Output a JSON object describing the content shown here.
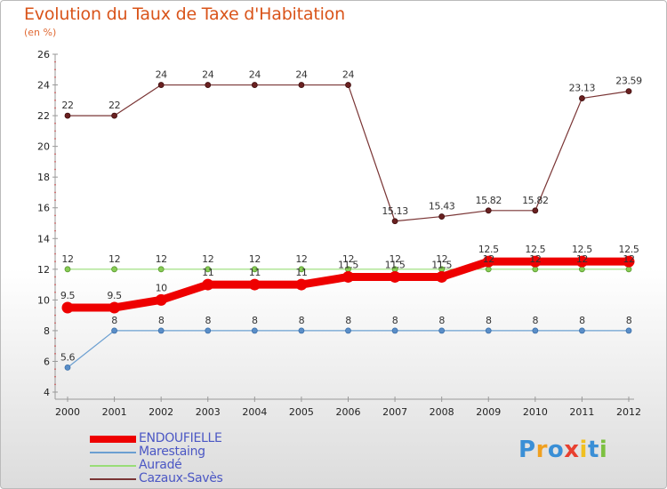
{
  "chart_data": {
    "type": "line",
    "title": "Evolution du Taux de Taxe d'Habitation",
    "subtitle": "(en %)",
    "ylim": [
      4,
      26
    ],
    "yticks": [
      4,
      6,
      8,
      10,
      12,
      14,
      16,
      18,
      20,
      22,
      24,
      26
    ],
    "categories": [
      "2000",
      "2001",
      "2002",
      "2003",
      "2004",
      "2005",
      "2006",
      "2007",
      "2008",
      "2009",
      "2010",
      "2011",
      "2012"
    ],
    "series": [
      {
        "name": "ENDOUFIELLE",
        "color": "#ee0000",
        "values": [
          9.5,
          9.5,
          10,
          11,
          11,
          11,
          11.5,
          11.5,
          11.5,
          12.5,
          12.5,
          12.5,
          12.5
        ],
        "labels": [
          "9.5",
          "9.5",
          "10",
          "11",
          "11",
          "11",
          "11.5",
          "11.5",
          "11.5",
          "12.5",
          "12.5",
          "12.5",
          "12.5"
        ]
      },
      {
        "name": "Marestaing",
        "color": "#6b9fd1",
        "values": [
          5.6,
          8,
          8,
          8,
          8,
          8,
          8,
          8,
          8,
          8,
          8,
          8,
          8
        ],
        "labels": [
          "5.6",
          "8",
          "8",
          "8",
          "8",
          "8",
          "8",
          "8",
          "8",
          "8",
          "8",
          "8",
          "8"
        ]
      },
      {
        "name": "Auradé",
        "color": "#99dd77",
        "values": [
          12,
          12,
          12,
          12,
          12,
          12,
          12,
          12,
          12,
          12,
          12,
          12,
          12
        ],
        "labels": [
          "12",
          "12",
          "12",
          "12",
          "12",
          "12",
          "12",
          "12",
          "12",
          "12",
          "12",
          "12",
          "12"
        ]
      },
      {
        "name": "Cazaux-Savès",
        "color": "#7a3535",
        "values": [
          22,
          22,
          24,
          24,
          24,
          24,
          24,
          15.13,
          15.43,
          15.82,
          15.82,
          23.13,
          23.59
        ],
        "labels": [
          "22",
          "22",
          "24",
          "24",
          "24",
          "24",
          "24",
          "15.13",
          "15.43",
          "15.82",
          "15.82",
          "23.13",
          "23.59"
        ]
      }
    ]
  },
  "logo": {
    "letters": [
      "P",
      "r",
      "o",
      "x",
      "i",
      "t",
      "i"
    ],
    "colors": [
      "#3a8fd6",
      "#f0a020",
      "#3a8fd6",
      "#e84030",
      "#f0c020",
      "#3a8fd6",
      "#7cc040"
    ]
  }
}
